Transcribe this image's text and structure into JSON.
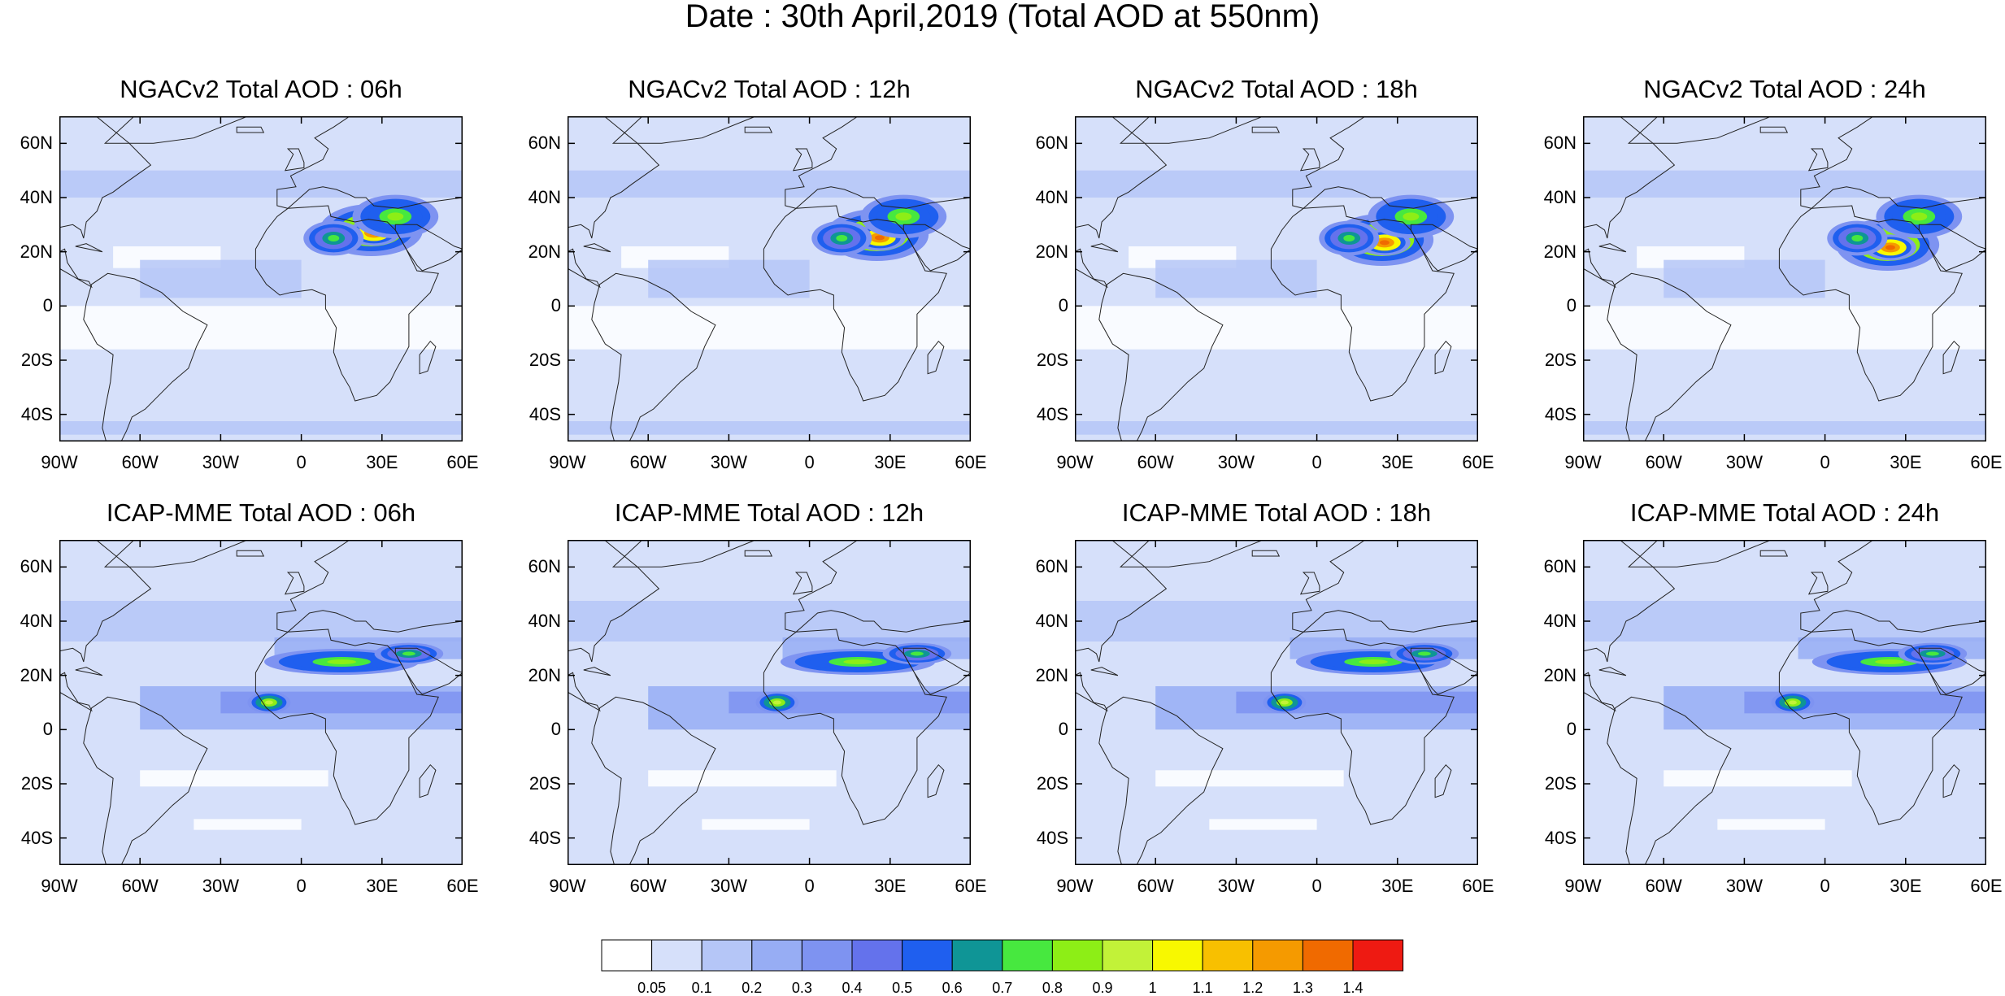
{
  "figure": {
    "title": "Date : 30th April,2019 (Total AOD at 550nm)"
  },
  "lat_ticks": [
    "60N",
    "40N",
    "20N",
    "0",
    "20S",
    "40S"
  ],
  "lon_ticks": [
    "90W",
    "60W",
    "30W",
    "0",
    "30E",
    "60E"
  ],
  "panels": [
    {
      "title": "NGACv2 Total AOD : 06h",
      "model": "NGACv2",
      "lead": "06h"
    },
    {
      "title": "NGACv2 Total AOD : 12h",
      "model": "NGACv2",
      "lead": "12h"
    },
    {
      "title": "NGACv2 Total AOD : 18h",
      "model": "NGACv2",
      "lead": "18h"
    },
    {
      "title": "NGACv2 Total AOD : 24h",
      "model": "NGACv2",
      "lead": "24h"
    },
    {
      "title": "ICAP-MME Total AOD : 06h",
      "model": "ICAP-MME",
      "lead": "06h"
    },
    {
      "title": "ICAP-MME Total AOD : 12h",
      "model": "ICAP-MME",
      "lead": "12h"
    },
    {
      "title": "ICAP-MME Total AOD : 18h",
      "model": "ICAP-MME",
      "lead": "18h"
    },
    {
      "title": "ICAP-MME Total AOD : 24h",
      "model": "ICAP-MME",
      "lead": "24h"
    }
  ],
  "map_extent": {
    "lon_min": -90,
    "lon_max": 60,
    "lat_min": -50,
    "lat_max": 70
  },
  "colorbar": {
    "labels": [
      "0.05",
      "0.1",
      "0.2",
      "0.3",
      "0.4",
      "0.5",
      "0.6",
      "0.7",
      "0.8",
      "0.9",
      "1",
      "1.1",
      "1.2",
      "1.3",
      "1.4"
    ],
    "colors": [
      "#ffffff",
      "#d6e0fa",
      "#b5c6f7",
      "#97adf4",
      "#7e93f1",
      "#6472ec",
      "#1f5fef",
      "#0f9596",
      "#47e83f",
      "#8dee16",
      "#c2f238",
      "#f8f800",
      "#f8c000",
      "#f59a00",
      "#f06a00",
      "#ee1a12"
    ]
  }
}
